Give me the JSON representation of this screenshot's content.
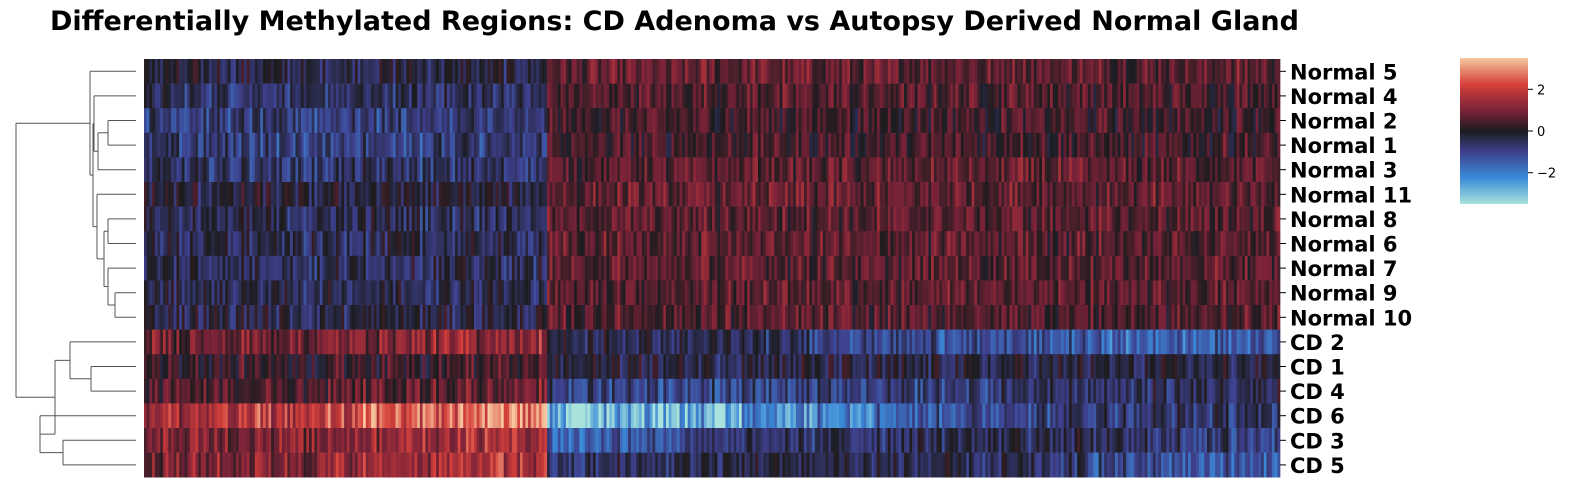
{
  "title": "Differentially Methylated Regions: CD Adenoma vs Autopsy Derived Normal Gland",
  "chart_data": {
    "type": "heatmap",
    "title": "Differentially Methylated Regions: CD Adenoma vs Autopsy Derived Normal Gland",
    "xlabel": "",
    "ylabel": "",
    "clustering": "rows (dendrogram on left)",
    "colormap": "icefire (diverging: light cyan -> blue -> near-black -> red -> light orange)",
    "colors": {
      "low": "#a9e3dc",
      "low_mid": "#3a7bd5",
      "low_dark": "#3d3f8c",
      "center": "#1c1c1e",
      "high_dark": "#7a2238",
      "high_mid": "#d6403a",
      "high": "#f7c7a0",
      "dendrogram": "#555555"
    },
    "colorbar": {
      "vmin": -3.5,
      "vmax": 3.5,
      "ticks": [
        2,
        0,
        -2
      ],
      "tick_labels": [
        "2",
        "0",
        "−2"
      ]
    },
    "rows": [
      {
        "label": "Normal 5",
        "left_mean": -0.4,
        "right_mean": 0.9
      },
      {
        "label": "Normal 4",
        "left_mean": -0.8,
        "right_mean": 0.7
      },
      {
        "label": "Normal 2",
        "left_mean": -1.1,
        "right_mean": 0.5
      },
      {
        "label": "Normal 1",
        "left_mean": -1.1,
        "right_mean": 0.5
      },
      {
        "label": "Normal 3",
        "left_mean": -0.9,
        "right_mean": 0.8
      },
      {
        "label": "Normal 11",
        "left_mean": -0.3,
        "right_mean": 0.9
      },
      {
        "label": "Normal 8",
        "left_mean": -0.6,
        "right_mean": 0.8
      },
      {
        "label": "Normal 6",
        "left_mean": -0.6,
        "right_mean": 0.8
      },
      {
        "label": "Normal 7",
        "left_mean": -0.6,
        "right_mean": 0.8
      },
      {
        "label": "Normal 9",
        "left_mean": -0.5,
        "right_mean": 0.8
      },
      {
        "label": "Normal 10",
        "left_mean": -0.4,
        "right_mean": 0.7
      },
      {
        "label": "CD 2",
        "left_mean": 1.3,
        "right_mean": -1.5
      },
      {
        "label": "CD 1",
        "left_mean": 0.4,
        "right_mean": -0.4
      },
      {
        "label": "CD 4",
        "left_mean": 0.8,
        "right_mean": -1.1
      },
      {
        "label": "CD 6",
        "left_mean": 2.4,
        "right_mean": -2.6
      },
      {
        "label": "CD 3",
        "left_mean": 1.6,
        "right_mean": -1.8
      },
      {
        "label": "CD 5",
        "left_mean": 1.6,
        "right_mean": -1.6
      }
    ],
    "column_split_fraction": 0.355
  }
}
